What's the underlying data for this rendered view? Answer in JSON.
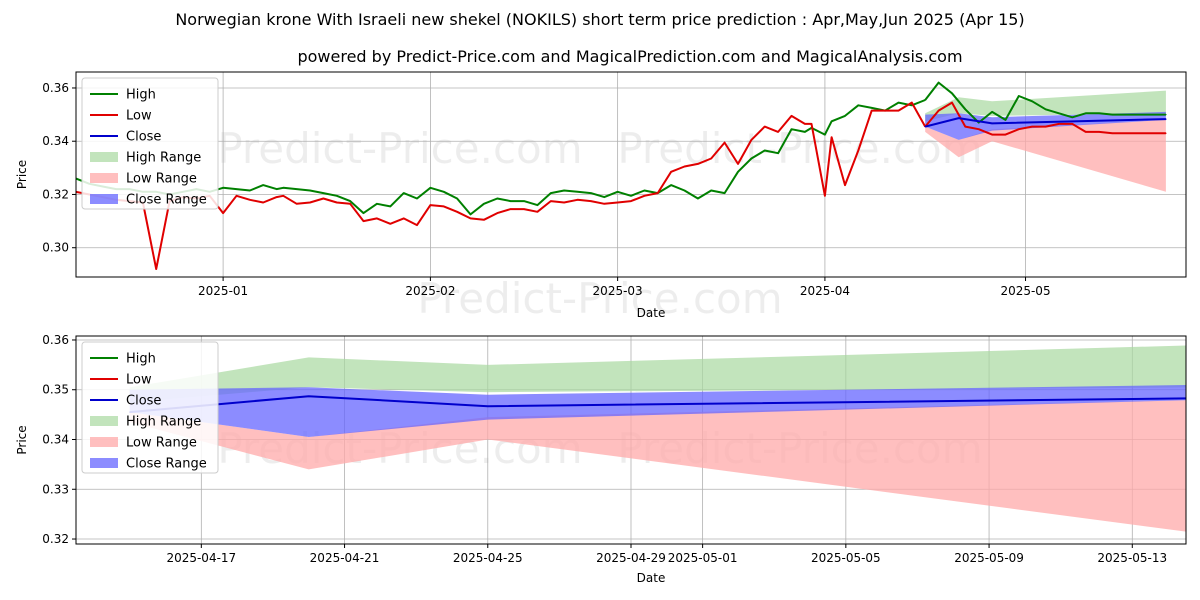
{
  "title": "Norwegian krone With Israeli new shekel (NOKILS) short term price prediction : Apr,May,Jun 2025 (Apr 15)",
  "subtitle": "powered by Predict-Price.com and MagicalPrediction.com and MagicalAnalysis.com",
  "watermark": "Predict-Price.com",
  "colors": {
    "high": "#008000",
    "low": "#e00000",
    "close": "#0000cc",
    "high_range": "#a8d8a0",
    "low_range": "#ffaaaa",
    "close_range": "#6666ff"
  },
  "chart_data": [
    {
      "type": "line",
      "xlabel": "Date",
      "ylabel": "Price",
      "xlim": [
        -22,
        144
      ],
      "ylim": [
        0.289,
        0.366
      ],
      "xticks": [
        {
          "x": 0,
          "label": "2025-01"
        },
        {
          "x": 31,
          "label": "2025-02"
        },
        {
          "x": 59,
          "label": "2025-03"
        },
        {
          "x": 90,
          "label": "2025-04"
        },
        {
          "x": 120,
          "label": "2025-05"
        }
      ],
      "yticks": [
        0.3,
        0.32,
        0.34,
        0.36
      ],
      "ytick_labels": [
        "0.30",
        "0.32",
        "0.34",
        "0.36"
      ],
      "legend": {
        "position": "top-left",
        "entries": [
          "High",
          "Low",
          "Close",
          "High Range",
          "Low Range",
          "Close Range"
        ]
      },
      "series": [
        {
          "name": "High",
          "x": [
            -22,
            -20,
            -18,
            -16,
            -14,
            -12,
            -10,
            -8,
            -6,
            -4,
            -2,
            0,
            2,
            4,
            6,
            8,
            9,
            11,
            13,
            15,
            17,
            19,
            21,
            23,
            25,
            27,
            29,
            31,
            33,
            35,
            37,
            39,
            41,
            43,
            45,
            47,
            49,
            51,
            53,
            55,
            57,
            59,
            61,
            63,
            65,
            67,
            69,
            71,
            73,
            75,
            77,
            79,
            81,
            83,
            85,
            87,
            88,
            90,
            91,
            93,
            95,
            97,
            99,
            101,
            103,
            105
          ],
          "values": [
            0.326,
            0.324,
            0.323,
            0.322,
            0.322,
            0.321,
            0.321,
            0.32,
            0.321,
            0.322,
            0.321,
            0.3225,
            0.322,
            0.3215,
            0.3235,
            0.322,
            0.3225,
            0.322,
            0.3215,
            0.3205,
            0.3195,
            0.3175,
            0.313,
            0.3165,
            0.3155,
            0.3205,
            0.3185,
            0.3225,
            0.321,
            0.3185,
            0.3125,
            0.3165,
            0.3185,
            0.3175,
            0.3175,
            0.316,
            0.3205,
            0.3215,
            0.321,
            0.3205,
            0.319,
            0.321,
            0.3195,
            0.3215,
            0.3205,
            0.3235,
            0.3215,
            0.3185,
            0.3215,
            0.3205,
            0.3285,
            0.3335,
            0.3365,
            0.3355,
            0.3445,
            0.3435,
            0.345,
            0.3425,
            0.3475,
            0.3495,
            0.3535,
            0.3525,
            0.3515,
            0.3545,
            0.3535,
            0.3555
          ]
        },
        {
          "name": "Low",
          "x": [
            -22,
            -20,
            -18,
            -16,
            -14,
            -12,
            -10,
            -8,
            -6,
            -4,
            -2,
            0,
            2,
            4,
            6,
            8,
            9,
            11,
            13,
            15,
            17,
            19,
            21,
            23,
            25,
            27,
            29,
            31,
            33,
            35,
            37,
            39,
            41,
            43,
            45,
            47,
            49,
            51,
            53,
            55,
            57,
            59,
            61,
            63,
            65,
            67,
            69,
            71,
            73,
            75,
            77,
            79,
            81,
            83,
            85,
            87,
            88,
            90,
            91,
            93,
            95,
            97,
            99,
            101,
            103,
            105
          ],
          "values": [
            0.321,
            0.32,
            0.319,
            0.318,
            0.3175,
            0.317,
            0.292,
            0.3175,
            0.319,
            0.3185,
            0.3195,
            0.313,
            0.3195,
            0.318,
            0.317,
            0.319,
            0.3195,
            0.3165,
            0.317,
            0.3185,
            0.317,
            0.3165,
            0.31,
            0.311,
            0.309,
            0.311,
            0.3085,
            0.316,
            0.3155,
            0.3135,
            0.311,
            0.3105,
            0.313,
            0.3145,
            0.3145,
            0.3135,
            0.3175,
            0.317,
            0.318,
            0.3175,
            0.3165,
            0.317,
            0.3175,
            0.3195,
            0.3205,
            0.3285,
            0.3305,
            0.3315,
            0.3335,
            0.3395,
            0.3315,
            0.3405,
            0.3455,
            0.3435,
            0.3495,
            0.3465,
            0.3465,
            0.3195,
            0.3415,
            0.3235,
            0.3365,
            0.3515,
            0.3515,
            0.3515,
            0.3545,
            0.3455
          ]
        },
        {
          "name": "High (recent)",
          "x": [
            105,
            107,
            109,
            111,
            113,
            115,
            117,
            119,
            121,
            123,
            125,
            127,
            129,
            131,
            133,
            135,
            137,
            139,
            141
          ],
          "values": [
            0.3555,
            0.362,
            0.358,
            0.352,
            0.347,
            0.351,
            0.348,
            0.357,
            0.355,
            0.352,
            0.3505,
            0.349,
            0.3505,
            0.3505,
            0.35,
            0.35,
            0.35,
            0.35,
            0.35
          ]
        },
        {
          "name": "Low (recent)",
          "x": [
            105,
            107,
            109,
            111,
            113,
            115,
            117,
            119,
            121,
            123,
            125,
            127,
            129,
            131,
            133,
            135,
            137,
            139,
            141
          ],
          "values": [
            0.3455,
            0.3515,
            0.3545,
            0.3455,
            0.3445,
            0.3425,
            0.3425,
            0.3445,
            0.3455,
            0.3455,
            0.3465,
            0.3465,
            0.3435,
            0.3435,
            0.343,
            0.343,
            0.343,
            0.343,
            0.343
          ]
        },
        {
          "name": "High Range",
          "x": [
            105,
            110,
            115,
            141
          ],
          "upper": [
            0.3505,
            0.3565,
            0.355,
            0.359
          ],
          "lower": [
            0.3475,
            0.3505,
            0.3495,
            0.3505
          ]
        },
        {
          "name": "Low Range",
          "x": [
            105,
            110,
            115,
            141
          ],
          "upper": [
            0.3455,
            0.3405,
            0.3445,
            0.348
          ],
          "lower": [
            0.3435,
            0.334,
            0.34,
            0.321
          ]
        },
        {
          "name": "Close Range",
          "x": [
            105,
            110,
            115,
            141
          ],
          "upper": [
            0.35,
            0.3505,
            0.349,
            0.351
          ],
          "lower": [
            0.3455,
            0.3405,
            0.344,
            0.348
          ]
        },
        {
          "name": "Close",
          "x": [
            105,
            110,
            115,
            141
          ],
          "values": [
            0.3455,
            0.3487,
            0.3467,
            0.3483
          ]
        }
      ]
    },
    {
      "type": "line",
      "xlabel": "Date",
      "ylabel": "Price",
      "xlim": [
        13.5,
        44.5
      ],
      "ylim": [
        0.319,
        0.3608
      ],
      "xticks": [
        {
          "x": 17,
          "label": "2025-04-17"
        },
        {
          "x": 21,
          "label": "2025-04-21"
        },
        {
          "x": 25,
          "label": "2025-04-25"
        },
        {
          "x": 29,
          "label": "2025-04-29"
        },
        {
          "x": 31,
          "label": "2025-05-01"
        },
        {
          "x": 35,
          "label": "2025-05-05"
        },
        {
          "x": 39,
          "label": "2025-05-09"
        },
        {
          "x": 43,
          "label": "2025-05-13"
        }
      ],
      "yticks": [
        0.32,
        0.33,
        0.34,
        0.35,
        0.36
      ],
      "ytick_labels": [
        "0.32",
        "0.33",
        "0.34",
        "0.35",
        "0.36"
      ],
      "legend": {
        "position": "top-left",
        "entries": [
          "High",
          "Low",
          "Close",
          "High Range",
          "Low Range",
          "Close Range"
        ]
      },
      "series": [
        {
          "name": "High Range",
          "x": [
            15,
            20,
            25,
            45
          ],
          "upper": [
            0.3505,
            0.3565,
            0.355,
            0.359
          ],
          "lower": [
            0.3475,
            0.3505,
            0.3495,
            0.3505
          ]
        },
        {
          "name": "Low Range",
          "x": [
            15,
            20,
            25,
            45
          ],
          "upper": [
            0.3455,
            0.3405,
            0.3445,
            0.348
          ],
          "lower": [
            0.3435,
            0.334,
            0.34,
            0.321
          ]
        },
        {
          "name": "Close Range",
          "x": [
            15,
            20,
            25,
            45
          ],
          "upper": [
            0.35,
            0.3505,
            0.349,
            0.351
          ],
          "lower": [
            0.3455,
            0.3405,
            0.344,
            0.348
          ]
        },
        {
          "name": "Close",
          "x": [
            15,
            20,
            25,
            45
          ],
          "values": [
            0.3455,
            0.3487,
            0.3467,
            0.3483
          ]
        }
      ]
    }
  ]
}
